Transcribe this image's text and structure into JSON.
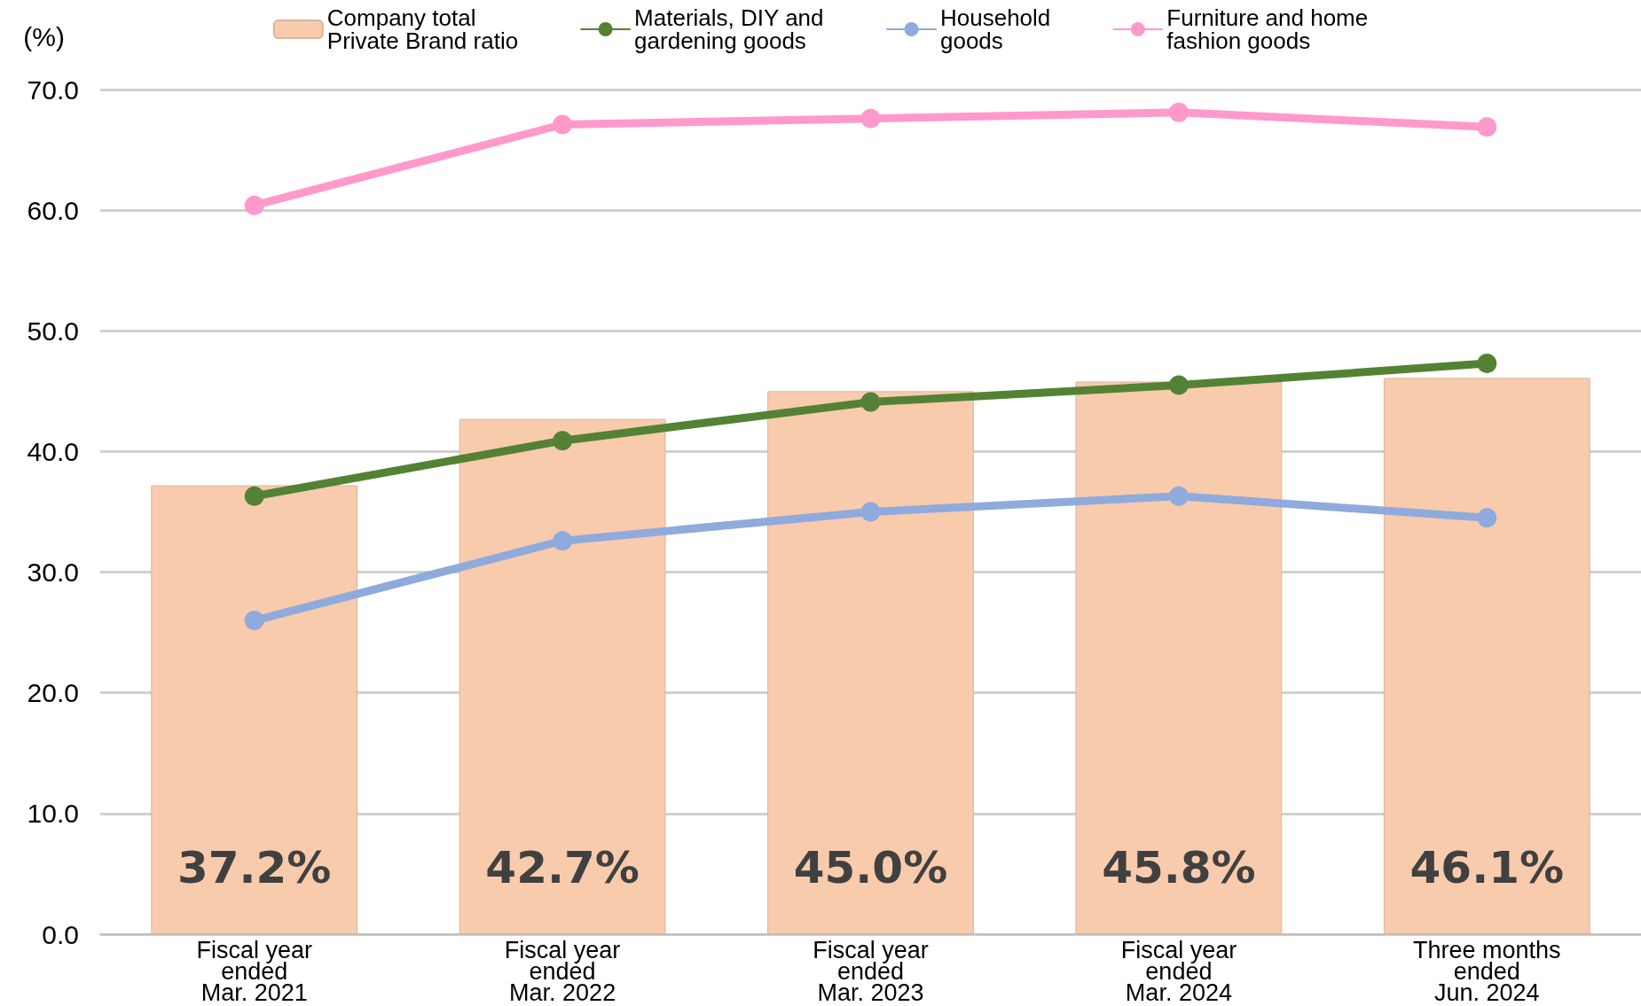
{
  "chart_data": {
    "type": "bar",
    "ylabel": "(%)",
    "categories": [
      "Fiscal year\nended\nMar. 2021",
      "Fiscal year\nended\nMar. 2022",
      "Fiscal year\nended\nMar. 2023",
      "Fiscal year\nended\nMar. 2024",
      "Three months\nended\nJun. 2024"
    ],
    "series": [
      {
        "name": "Company total\nPrivate Brand ratio",
        "color": "#f8cbad",
        "values": [
          37.2,
          42.7,
          45.0,
          45.8,
          46.1
        ],
        "value_labels": [
          "37.2%",
          "42.7%",
          "45.0%",
          "45.8%",
          "46.1%"
        ]
      },
      {
        "name": "Materials, DIY and\ngardening goods",
        "type": "line",
        "color": "#548235",
        "values": [
          36.3,
          40.9,
          44.1,
          45.5,
          47.3
        ]
      },
      {
        "name": "Household\ngoods",
        "type": "line",
        "color": "#8faadc",
        "values": [
          26.0,
          32.6,
          35.0,
          36.3,
          34.5
        ]
      },
      {
        "name": "Furniture and home\nfashion goods",
        "type": "line",
        "color": "#ff99cc",
        "values": [
          60.4,
          67.1,
          67.6,
          68.1,
          66.9
        ]
      }
    ],
    "ylim": [
      0,
      70
    ],
    "yticks": [
      {
        "value": 0,
        "label": "0.0"
      },
      {
        "value": 10,
        "label": "10.0"
      },
      {
        "value": 20,
        "label": "20.0"
      },
      {
        "value": 30,
        "label": "30.0"
      },
      {
        "value": 40,
        "label": "40.0"
      },
      {
        "value": 50,
        "label": "50.0"
      },
      {
        "value": 60,
        "label": "60.0"
      },
      {
        "value": 70,
        "label": "70.0"
      }
    ],
    "grid": "y",
    "legend": "top",
    "marker": "circle"
  }
}
